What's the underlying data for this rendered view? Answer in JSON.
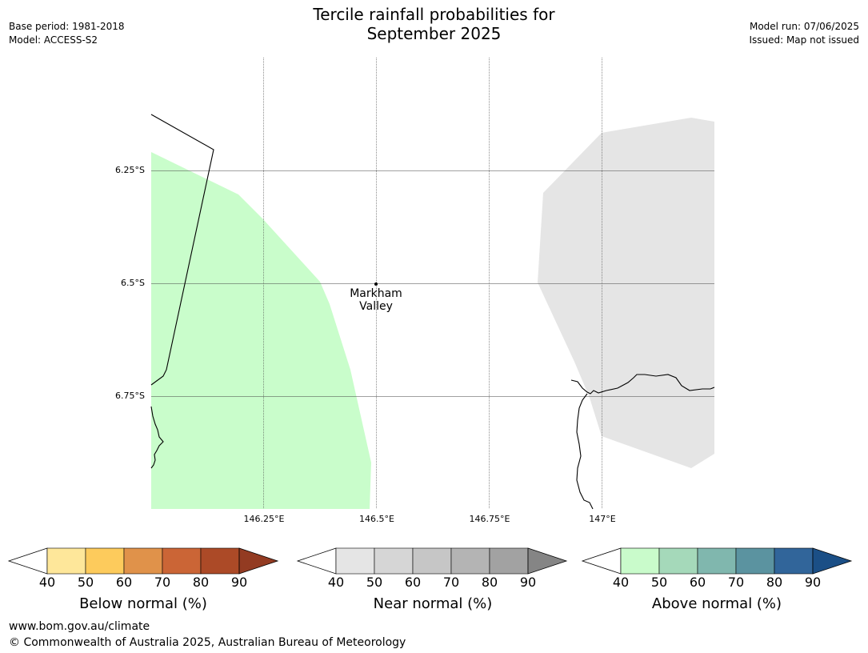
{
  "title_line1": "Tercile rainfall probabilities for",
  "title_line2": "September 2025",
  "meta_left": [
    "Base period: 1981-2018",
    "Model: ACCESS-S2"
  ],
  "meta_right": [
    "Model run: 07/06/2025",
    "Issued: Map not issued"
  ],
  "latitude_labels": [
    "6.25°S",
    "6.5°S",
    "6.75°S"
  ],
  "longitude_labels": [
    "146.25°E",
    "146.5°E",
    "146.75°E",
    "147°E"
  ],
  "place": {
    "name_line1": "Markham",
    "name_line2": "Valley"
  },
  "colorbars": [
    {
      "title": "Below normal (%)",
      "ticks": [
        "40",
        "50",
        "60",
        "70",
        "80",
        "90"
      ],
      "colors": [
        "#fee79a",
        "#fdcb5c",
        "#e0924a",
        "#cb6536",
        "#ac4a27",
        "#933b22"
      ]
    },
    {
      "title": "Near normal (%)",
      "ticks": [
        "40",
        "50",
        "60",
        "70",
        "80",
        "90"
      ],
      "colors": [
        "#e5e5e5",
        "#d6d6d6",
        "#c6c6c6",
        "#b4b4b4",
        "#a2a2a2",
        "#858585"
      ]
    },
    {
      "title": "Above normal (%)",
      "ticks": [
        "40",
        "50",
        "60",
        "70",
        "80",
        "90"
      ],
      "colors": [
        "#c9fbcb",
        "#a5d9ba",
        "#80b7ae",
        "#5b93a0",
        "#31659a",
        "#1b4f86"
      ]
    }
  ],
  "regions": {
    "above_normal_color": "#c9fdcb",
    "near_normal_color": "#e5e5e5"
  },
  "footer": {
    "website": "www.bom.gov.au/climate",
    "copyright": "© Commonwealth of Australia 2025, Australian Bureau of Meteorology"
  }
}
